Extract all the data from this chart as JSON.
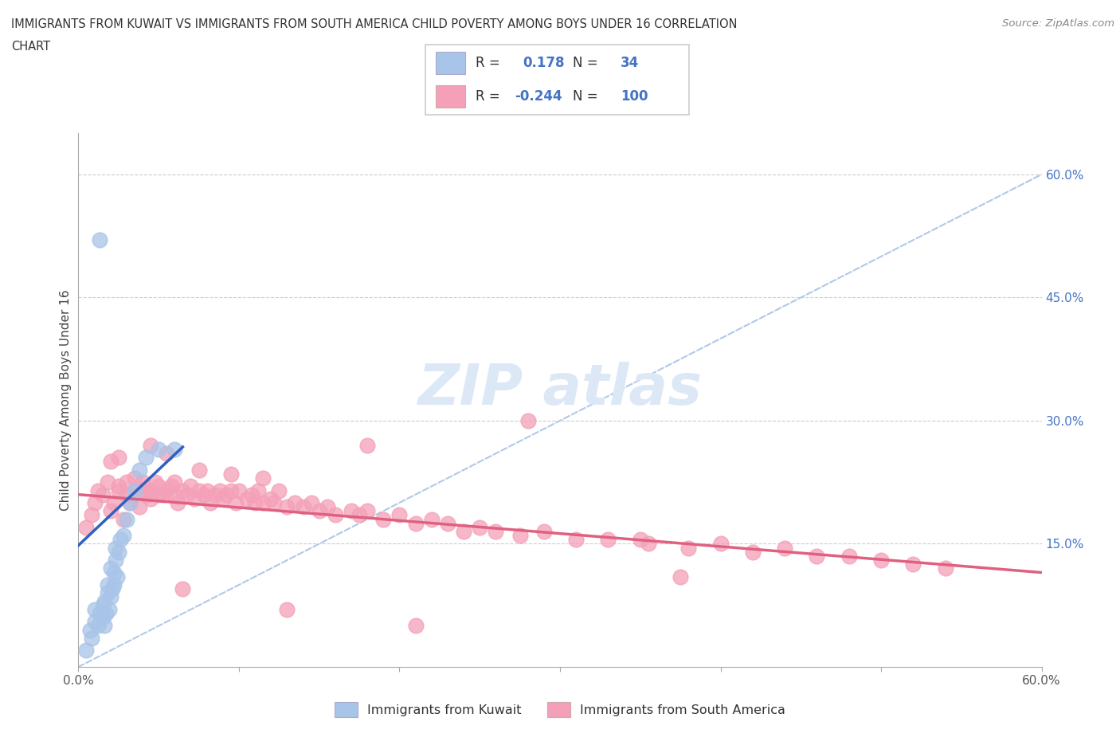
{
  "title_line1": "IMMIGRANTS FROM KUWAIT VS IMMIGRANTS FROM SOUTH AMERICA CHILD POVERTY AMONG BOYS UNDER 16 CORRELATION",
  "title_line2": "CHART",
  "source_text": "Source: ZipAtlas.com",
  "ylabel": "Child Poverty Among Boys Under 16",
  "xlim": [
    0.0,
    0.6
  ],
  "ylim": [
    0.0,
    0.65
  ],
  "kuwait_R": 0.178,
  "kuwait_N": 34,
  "sa_R": -0.244,
  "sa_N": 100,
  "kuwait_color": "#a8c4e8",
  "sa_color": "#f4a0b8",
  "kuwait_line_color": "#3060c0",
  "sa_line_color": "#e06080",
  "ref_line_color": "#b0c8e8",
  "legend_label_kuwait": "Immigrants from Kuwait",
  "legend_label_sa": "Immigrants from South America",
  "kuwait_x": [
    0.005,
    0.007,
    0.008,
    0.01,
    0.01,
    0.012,
    0.013,
    0.015,
    0.015,
    0.016,
    0.016,
    0.017,
    0.018,
    0.018,
    0.019,
    0.02,
    0.02,
    0.021,
    0.022,
    0.022,
    0.023,
    0.023,
    0.024,
    0.025,
    0.026,
    0.028,
    0.03,
    0.032,
    0.035,
    0.038,
    0.042,
    0.05,
    0.06,
    0.013
  ],
  "kuwait_y": [
    0.02,
    0.045,
    0.035,
    0.055,
    0.07,
    0.05,
    0.065,
    0.06,
    0.075,
    0.05,
    0.08,
    0.065,
    0.09,
    0.1,
    0.07,
    0.085,
    0.12,
    0.095,
    0.1,
    0.115,
    0.13,
    0.145,
    0.11,
    0.14,
    0.155,
    0.16,
    0.18,
    0.2,
    0.215,
    0.24,
    0.255,
    0.265,
    0.265,
    0.52
  ],
  "sa_x": [
    0.005,
    0.008,
    0.01,
    0.012,
    0.015,
    0.018,
    0.02,
    0.022,
    0.025,
    0.025,
    0.028,
    0.03,
    0.03,
    0.032,
    0.035,
    0.035,
    0.038,
    0.04,
    0.04,
    0.042,
    0.045,
    0.045,
    0.048,
    0.05,
    0.05,
    0.053,
    0.055,
    0.058,
    0.06,
    0.06,
    0.062,
    0.065,
    0.068,
    0.07,
    0.072,
    0.075,
    0.078,
    0.08,
    0.082,
    0.085,
    0.088,
    0.09,
    0.092,
    0.095,
    0.098,
    0.1,
    0.105,
    0.108,
    0.11,
    0.112,
    0.115,
    0.12,
    0.122,
    0.125,
    0.13,
    0.135,
    0.14,
    0.145,
    0.15,
    0.155,
    0.16,
    0.17,
    0.175,
    0.18,
    0.19,
    0.2,
    0.21,
    0.22,
    0.23,
    0.24,
    0.25,
    0.26,
    0.275,
    0.29,
    0.31,
    0.33,
    0.355,
    0.38,
    0.4,
    0.42,
    0.44,
    0.46,
    0.48,
    0.5,
    0.52,
    0.54,
    0.02,
    0.025,
    0.045,
    0.055,
    0.075,
    0.095,
    0.115,
    0.35,
    0.375,
    0.28,
    0.18,
    0.065,
    0.13,
    0.21
  ],
  "sa_y": [
    0.17,
    0.185,
    0.2,
    0.215,
    0.21,
    0.225,
    0.19,
    0.2,
    0.215,
    0.22,
    0.18,
    0.21,
    0.225,
    0.2,
    0.215,
    0.23,
    0.195,
    0.215,
    0.225,
    0.21,
    0.205,
    0.215,
    0.225,
    0.21,
    0.22,
    0.21,
    0.215,
    0.22,
    0.21,
    0.225,
    0.2,
    0.215,
    0.21,
    0.22,
    0.205,
    0.215,
    0.21,
    0.215,
    0.2,
    0.21,
    0.215,
    0.205,
    0.21,
    0.215,
    0.2,
    0.215,
    0.205,
    0.21,
    0.2,
    0.215,
    0.2,
    0.205,
    0.2,
    0.215,
    0.195,
    0.2,
    0.195,
    0.2,
    0.19,
    0.195,
    0.185,
    0.19,
    0.185,
    0.19,
    0.18,
    0.185,
    0.175,
    0.18,
    0.175,
    0.165,
    0.17,
    0.165,
    0.16,
    0.165,
    0.155,
    0.155,
    0.15,
    0.145,
    0.15,
    0.14,
    0.145,
    0.135,
    0.135,
    0.13,
    0.125,
    0.12,
    0.25,
    0.255,
    0.27,
    0.26,
    0.24,
    0.235,
    0.23,
    0.155,
    0.11,
    0.3,
    0.27,
    0.095,
    0.07,
    0.05
  ],
  "kuwait_trend_x0": 0.0,
  "kuwait_trend_x1": 0.065,
  "kuwait_trend_y0": 0.148,
  "kuwait_trend_y1": 0.268,
  "sa_trend_x0": 0.0,
  "sa_trend_x1": 0.6,
  "sa_trend_y0": 0.21,
  "sa_trend_y1": 0.115
}
